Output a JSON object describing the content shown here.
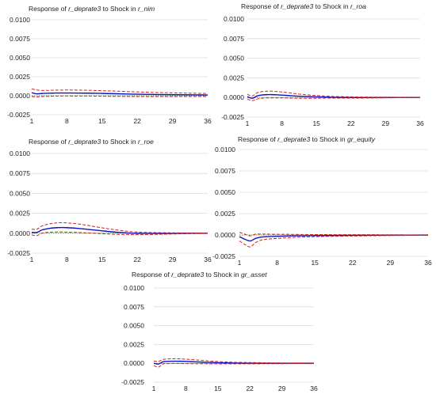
{
  "chart_data": [
    {
      "type": "line",
      "title_prefix": "Response of ",
      "title_response": "r_deprate3",
      "title_mid": " to Shock in ",
      "title_shock": "r_nim",
      "ylim": [
        -0.0025,
        0.01
      ],
      "yticks": [
        "0.0100",
        "0.0075",
        "0.0050",
        "0.0025",
        "0.0000",
        "-0.0025"
      ],
      "ytick_values": [
        0.01,
        0.0075,
        0.005,
        0.0025,
        0,
        -0.0025
      ],
      "xlim": [
        1,
        36
      ],
      "xticks": [
        1,
        8,
        15,
        22,
        29,
        36
      ],
      "grid": true,
      "zero_line_color": "#44aa44",
      "series": [
        {
          "role": "response",
          "color": "#1010c8",
          "style": "solid",
          "x": [
            1,
            2,
            3,
            4,
            5,
            6,
            8,
            10,
            12,
            15,
            18,
            22,
            26,
            29,
            32,
            36
          ],
          "y": [
            0.0004,
            0.00025,
            0.0003,
            0.00032,
            0.00034,
            0.00036,
            0.00036,
            0.00035,
            0.00034,
            0.0003,
            0.00026,
            0.0002,
            0.00016,
            0.00014,
            0.00012,
            0.0001
          ]
        },
        {
          "role": "upper-band",
          "color": "#d42020",
          "style": "dashed",
          "x": [
            1,
            2,
            3,
            4,
            5,
            6,
            8,
            10,
            12,
            15,
            18,
            22,
            26,
            29,
            32,
            36
          ],
          "y": [
            0.0009,
            0.00075,
            0.0007,
            0.0007,
            0.00072,
            0.00074,
            0.00075,
            0.00074,
            0.00072,
            0.00066,
            0.0006,
            0.0005,
            0.00042,
            0.00038,
            0.00034,
            0.0003
          ]
        },
        {
          "role": "lower-band",
          "color": "#d42020",
          "style": "dashed",
          "x": [
            1,
            2,
            3,
            4,
            5,
            6,
            8,
            10,
            12,
            15,
            18,
            22,
            26,
            29,
            32,
            36
          ],
          "y": [
            -0.0001,
            -0.00015,
            -0.0001,
            -8e-05,
            -6e-05,
            -4e-05,
            -3e-05,
            -4e-05,
            -4e-05,
            -6e-05,
            -8e-05,
            -0.0001,
            -0.0001,
            -0.0001,
            -0.0001,
            -0.0001
          ]
        }
      ]
    },
    {
      "type": "line",
      "title_prefix": "Response of ",
      "title_response": "r_deprate3",
      "title_mid": " to Shock in ",
      "title_shock": "r_roa",
      "ylim": [
        -0.0025,
        0.01
      ],
      "yticks": [
        "0.0100",
        "0.0075",
        "0.0050",
        "0.0025",
        "0.0000",
        "-0.0025"
      ],
      "ytick_values": [
        0.01,
        0.0075,
        0.005,
        0.0025,
        0,
        -0.0025
      ],
      "xlim": [
        1,
        36
      ],
      "xticks": [
        1,
        8,
        15,
        22,
        29,
        36
      ],
      "grid": true,
      "zero_line_color": "#44aa44",
      "series": [
        {
          "role": "response",
          "color": "#1010c8",
          "style": "solid",
          "x": [
            1,
            2,
            3,
            4,
            5,
            6,
            7,
            8,
            10,
            12,
            15,
            18,
            22,
            26,
            30,
            36
          ],
          "y": [
            0.0001,
            -0.0001,
            0.0002,
            0.00032,
            0.00036,
            0.00036,
            0.00034,
            0.0003,
            0.00022,
            0.00015,
            8e-05,
            3e-05,
            0.0,
            -1e-05,
            0.0,
            0.0
          ]
        },
        {
          "role": "upper-band",
          "color": "#d42020",
          "style": "dashed",
          "x": [
            1,
            2,
            3,
            4,
            5,
            6,
            7,
            8,
            10,
            12,
            15,
            18,
            22,
            26,
            30,
            36
          ],
          "y": [
            0.0004,
            0.0002,
            0.0006,
            0.00075,
            0.0008,
            0.0008,
            0.00075,
            0.0007,
            0.00055,
            0.0004,
            0.00025,
            0.00014,
            8e-05,
            5e-05,
            4e-05,
            3e-05
          ]
        },
        {
          "role": "lower-band",
          "color": "#d42020",
          "style": "dashed",
          "x": [
            1,
            2,
            3,
            4,
            5,
            6,
            7,
            8,
            10,
            12,
            15,
            18,
            22,
            26,
            30,
            36
          ],
          "y": [
            -0.0002,
            -0.0004,
            -0.0002,
            -0.0001,
            -6e-05,
            -5e-05,
            -5e-05,
            -6e-05,
            -8e-05,
            -0.0001,
            -0.0001,
            -8e-05,
            -8e-05,
            -7e-05,
            -4e-05,
            -3e-05
          ]
        }
      ]
    },
    {
      "type": "line",
      "title_prefix": "Response of ",
      "title_response": "r_deprate3",
      "title_mid": " to Shock in ",
      "title_shock": "r_roe",
      "ylim": [
        -0.0025,
        0.01
      ],
      "yticks": [
        "0.0100",
        "0.0075",
        "0.0050",
        "0.0025",
        "0.0000",
        "-0.0025"
      ],
      "ytick_values": [
        0.01,
        0.0075,
        0.005,
        0.0025,
        0,
        -0.0025
      ],
      "xlim": [
        1,
        36
      ],
      "xticks": [
        1,
        8,
        15,
        22,
        29,
        36
      ],
      "grid": true,
      "zero_line_color": "#44aa44",
      "series": [
        {
          "role": "response",
          "color": "#1010c8",
          "style": "solid",
          "x": [
            1,
            2,
            3,
            4,
            5,
            6,
            7,
            8,
            10,
            12,
            15,
            18,
            20,
            22,
            26,
            30,
            36
          ],
          "y": [
            0.0001,
            0.0001,
            0.0004,
            0.00055,
            0.00065,
            0.0007,
            0.00072,
            0.0007,
            0.00062,
            0.0005,
            0.0003,
            0.00012,
            4e-05,
            -2e-05,
            -3e-05,
            -1e-05,
            0.0
          ]
        },
        {
          "role": "upper-band",
          "color": "#d42020",
          "style": "dashed",
          "x": [
            1,
            2,
            3,
            4,
            5,
            6,
            7,
            8,
            10,
            12,
            15,
            18,
            20,
            22,
            26,
            30,
            36
          ],
          "y": [
            0.0005,
            0.0005,
            0.0009,
            0.0011,
            0.00122,
            0.0013,
            0.00132,
            0.0013,
            0.00118,
            0.001,
            0.00068,
            0.0004,
            0.00025,
            0.00014,
            8e-05,
            5e-05,
            3e-05
          ]
        },
        {
          "role": "lower-band",
          "color": "#d42020",
          "style": "dashed",
          "x": [
            1,
            2,
            3,
            4,
            5,
            6,
            7,
            8,
            10,
            12,
            15,
            18,
            20,
            22,
            26,
            30,
            36
          ],
          "y": [
            -0.0002,
            -0.0003,
            0.0,
            0.0001,
            0.00014,
            0.00016,
            0.00016,
            0.00014,
            0.0001,
            4e-05,
            -6e-05,
            -0.00014,
            -0.00016,
            -0.00018,
            -0.00014,
            -8e-05,
            -3e-05
          ]
        }
      ]
    },
    {
      "type": "line",
      "title_prefix": "Response of ",
      "title_response": "r_deprate3",
      "title_mid": " to Shock in ",
      "title_shock": "gr_equity",
      "ylim": [
        -0.0025,
        0.01
      ],
      "yticks": [
        "0.0100",
        "0.0075",
        "0.0050",
        "0.0025",
        "0.0000",
        "-0.0025"
      ],
      "ytick_values": [
        0.01,
        0.0075,
        0.005,
        0.0025,
        0,
        -0.0025
      ],
      "xlim": [
        1,
        36
      ],
      "xticks": [
        1,
        8,
        15,
        22,
        29,
        36
      ],
      "grid": true,
      "zero_line_color": "#44aa44",
      "series": [
        {
          "role": "response",
          "color": "#1010c8",
          "style": "solid",
          "x": [
            1,
            2,
            3,
            4,
            5,
            6,
            8,
            10,
            12,
            15,
            18,
            22,
            26,
            30,
            36
          ],
          "y": [
            -0.0002,
            -0.0005,
            -0.0007,
            -0.0004,
            -0.00025,
            -0.0002,
            -0.00016,
            -0.00012,
            -0.0001,
            -8e-05,
            -6e-05,
            -4e-05,
            -3e-05,
            -2e-05,
            -1e-05
          ]
        },
        {
          "role": "upper-band",
          "color": "#d42020",
          "style": "dashed",
          "x": [
            1,
            2,
            3,
            4,
            5,
            6,
            8,
            10,
            12,
            15,
            18,
            22,
            26,
            30,
            36
          ],
          "y": [
            0.0003,
            0.0001,
            -0.0001,
            0.0001,
            0.0001,
            0.0001,
            8e-05,
            8e-05,
            6e-05,
            5e-05,
            4e-05,
            3e-05,
            3e-05,
            2e-05,
            1e-05
          ]
        },
        {
          "role": "lower-band",
          "color": "#d42020",
          "style": "dashed",
          "x": [
            1,
            2,
            3,
            4,
            5,
            6,
            8,
            10,
            12,
            15,
            18,
            22,
            26,
            30,
            36
          ],
          "y": [
            -0.0007,
            -0.0011,
            -0.0014,
            -0.0009,
            -0.0006,
            -0.0005,
            -0.0004,
            -0.00032,
            -0.00026,
            -0.0002,
            -0.00016,
            -0.00012,
            -9e-05,
            -6e-05,
            -4e-05
          ]
        }
      ]
    },
    {
      "type": "line",
      "title_prefix": "Response of ",
      "title_response": "r_deprate3",
      "title_mid": " to Shock in ",
      "title_shock": "gr_asset",
      "ylim": [
        -0.0025,
        0.01
      ],
      "yticks": [
        "0.0100",
        "0.0075",
        "0.0050",
        "0.0025",
        "0.0000",
        "-0.0025"
      ],
      "ytick_values": [
        0.01,
        0.0075,
        0.005,
        0.0025,
        0,
        -0.0025
      ],
      "xlim": [
        1,
        36
      ],
      "xticks": [
        1,
        8,
        15,
        22,
        29,
        36
      ],
      "grid": true,
      "zero_line_color": "#44aa44",
      "series": [
        {
          "role": "response",
          "color": "#1010c8",
          "style": "solid",
          "x": [
            1,
            2,
            3,
            4,
            5,
            6,
            7,
            8,
            10,
            12,
            15,
            18,
            22,
            26,
            30,
            36
          ],
          "y": [
            0.0,
            -0.0001,
            0.0002,
            0.00026,
            0.00028,
            0.00028,
            0.00027,
            0.00025,
            0.0002,
            0.00015,
            8e-05,
            4e-05,
            1e-05,
            0.0,
            0.0,
            0.0
          ]
        },
        {
          "role": "upper-band",
          "color": "#d42020",
          "style": "dashed",
          "x": [
            1,
            2,
            3,
            4,
            5,
            6,
            7,
            8,
            10,
            12,
            15,
            18,
            22,
            26,
            30,
            36
          ],
          "y": [
            0.0003,
            0.00025,
            0.0005,
            0.00058,
            0.0006,
            0.0006,
            0.00058,
            0.00055,
            0.00046,
            0.00036,
            0.00024,
            0.00015,
            0.0001,
            7e-05,
            5e-05,
            4e-05
          ]
        },
        {
          "role": "lower-band",
          "color": "#d42020",
          "style": "dashed",
          "x": [
            1,
            2,
            3,
            4,
            5,
            6,
            7,
            8,
            10,
            12,
            15,
            18,
            22,
            26,
            30,
            36
          ],
          "y": [
            -0.0003,
            -0.0005,
            -0.0001,
            -4e-05,
            -2e-05,
            -2e-05,
            -3e-05,
            -5e-05,
            -6e-05,
            -6e-05,
            -8e-05,
            -7e-05,
            -7e-05,
            -6e-05,
            -5e-05,
            -4e-05
          ]
        }
      ]
    }
  ]
}
